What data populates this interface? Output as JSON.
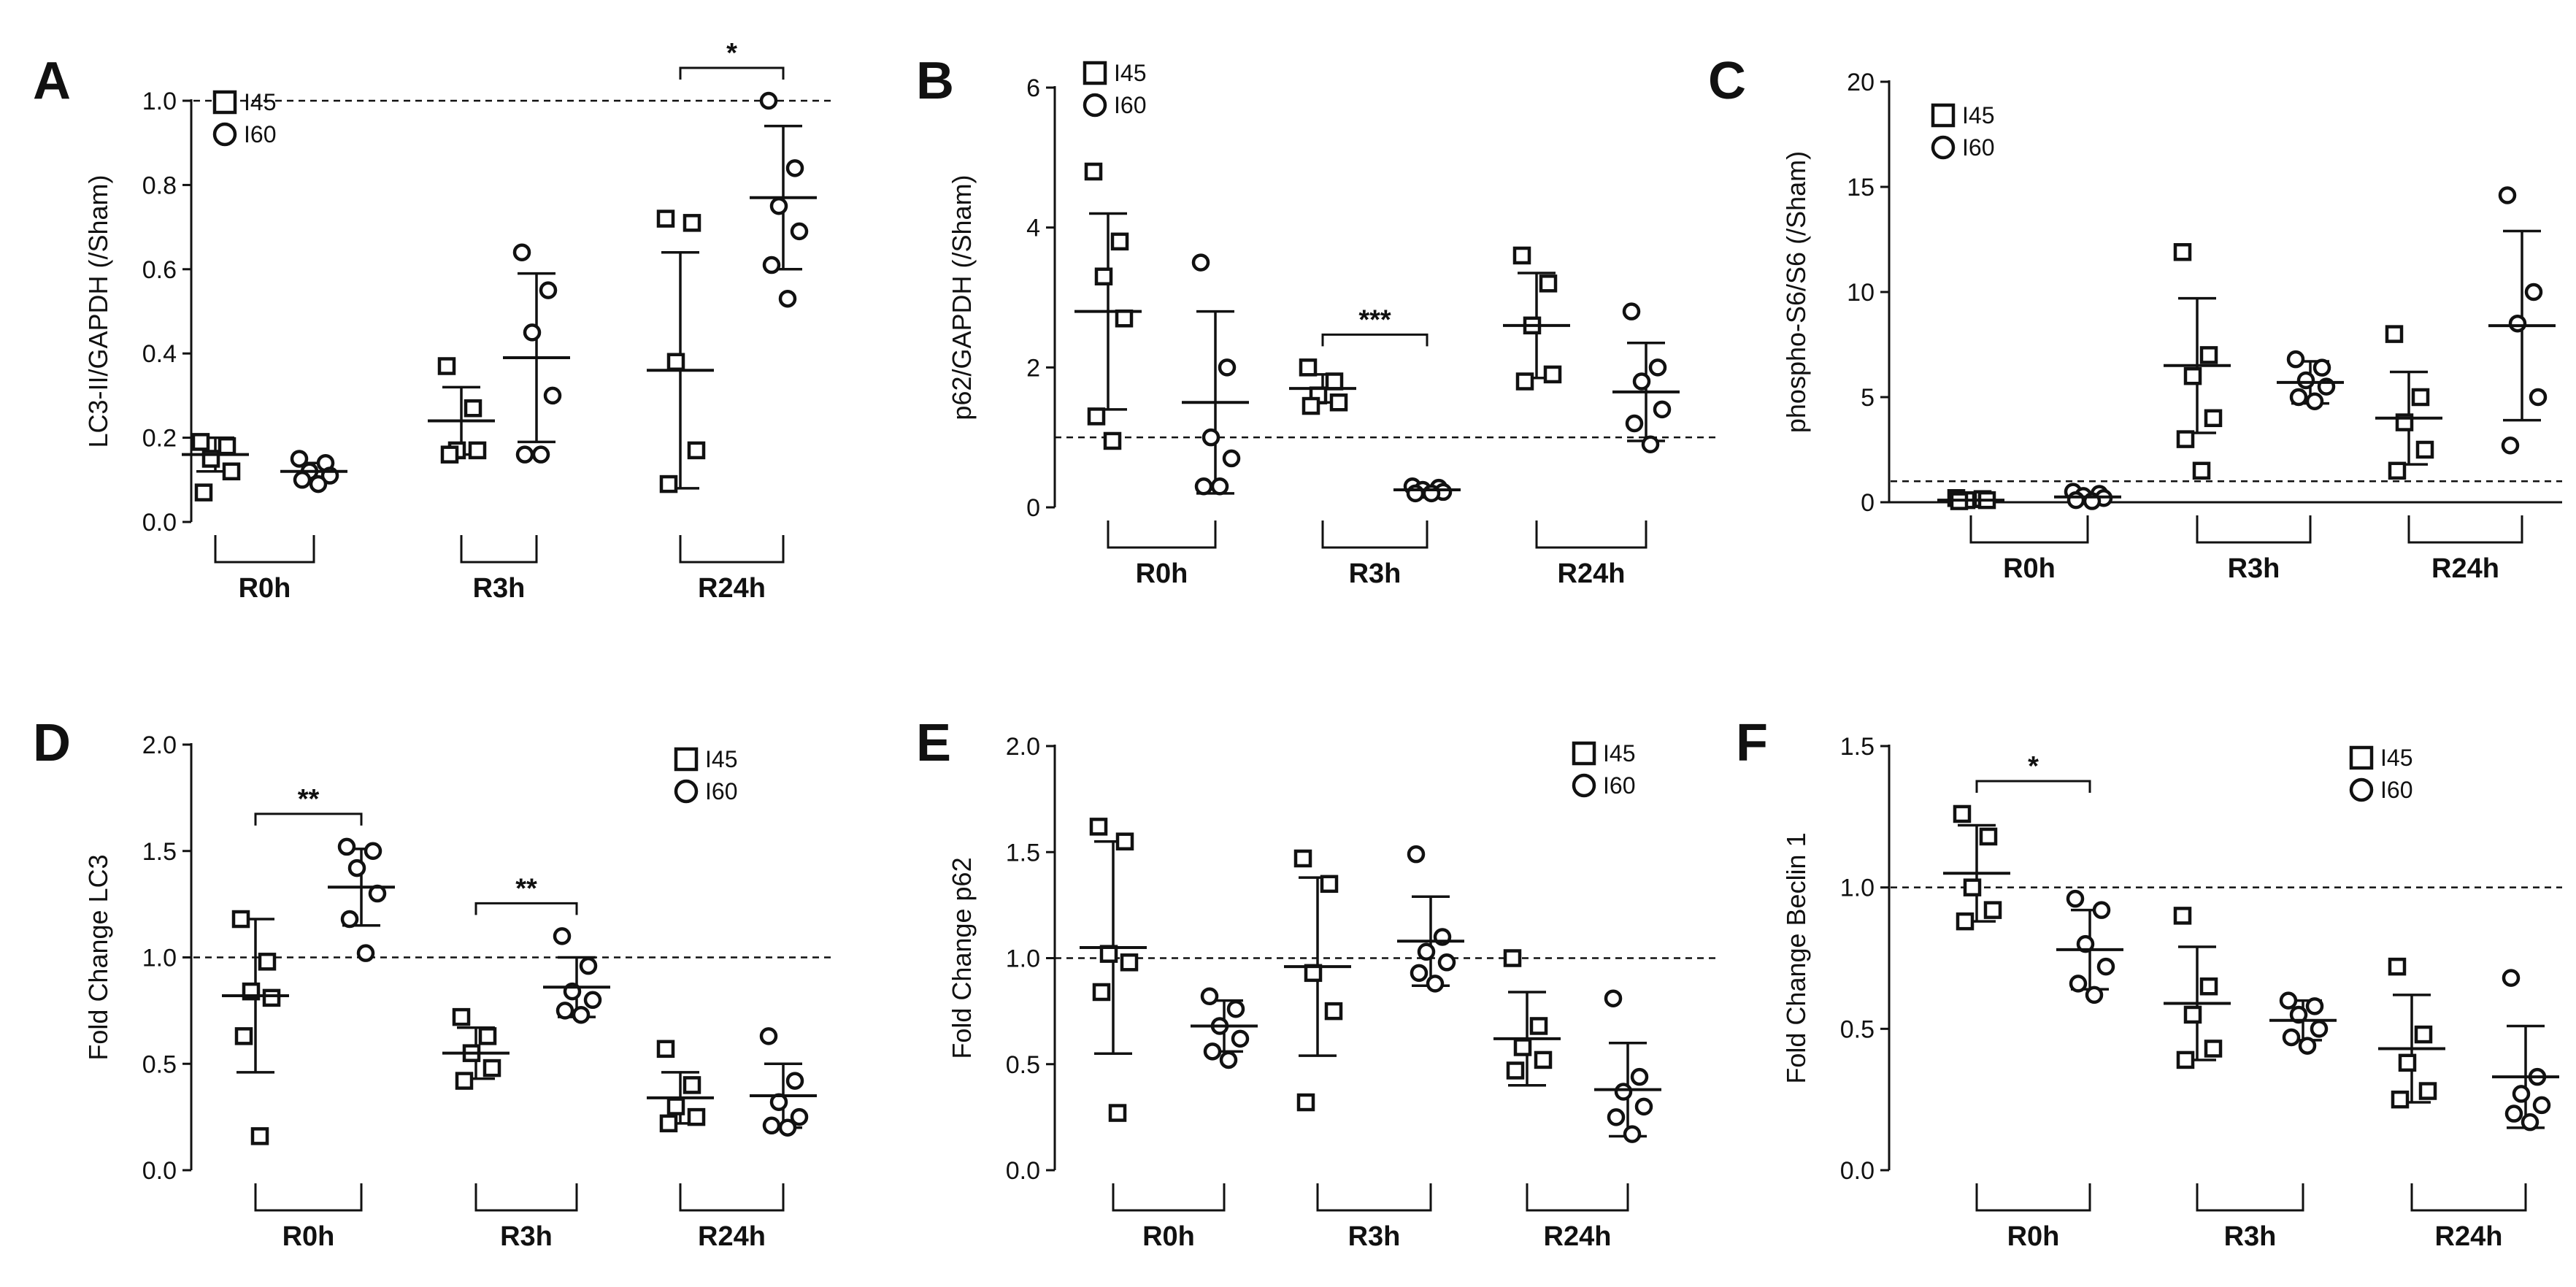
{
  "figure": {
    "group_labels": [
      "R0h",
      "R3h",
      "R24h"
    ],
    "series_names": [
      "I45",
      "I60"
    ],
    "colors": {
      "ink": "#111111",
      "background": "#ffffff"
    }
  },
  "chart_data": [
    {
      "panel": "A",
      "type": "scatter",
      "ylabel": "LC3-II/GAPDH (/Sham)",
      "ylim": [
        0,
        1.0
      ],
      "yticks": [
        0.0,
        0.2,
        0.4,
        0.6,
        0.8,
        1.0
      ],
      "tick_decimals": 1,
      "reference_line": 1.0,
      "legend_position": "top-left",
      "categories": [
        "R0h",
        "R3h",
        "R24h"
      ],
      "series": [
        {
          "name": "I45",
          "marker": "square",
          "means": [
            0.16,
            0.24,
            0.36
          ],
          "sd": [
            0.04,
            0.08,
            0.28
          ],
          "values": [
            [
              0.19,
              0.18,
              0.15,
              0.12,
              0.07
            ],
            [
              0.37,
              0.27,
              0.17,
              0.17,
              0.16
            ],
            [
              0.72,
              0.71,
              0.38,
              0.17,
              0.09
            ]
          ]
        },
        {
          "name": "I60",
          "marker": "circle",
          "means": [
            0.12,
            0.39,
            0.77
          ],
          "sd": [
            0.02,
            0.2,
            0.17
          ],
          "values": [
            [
              0.15,
              0.14,
              0.12,
              0.11,
              0.1,
              0.09
            ],
            [
              0.64,
              0.55,
              0.45,
              0.3,
              0.16,
              0.16
            ],
            [
              1.0,
              0.84,
              0.75,
              0.69,
              0.61,
              0.53
            ]
          ]
        }
      ],
      "significance": [
        {
          "category": "R24h",
          "label": "*"
        }
      ]
    },
    {
      "panel": "B",
      "type": "scatter",
      "ylabel": "p62/GAPDH (/Sham)",
      "ylim": [
        0,
        6
      ],
      "yticks": [
        0,
        2,
        4,
        6
      ],
      "tick_decimals": 0,
      "reference_line": 1.0,
      "legend_position": "top-left",
      "categories": [
        "R0h",
        "R3h",
        "R24h"
      ],
      "series": [
        {
          "name": "I45",
          "marker": "square",
          "means": [
            2.8,
            1.7,
            2.6
          ],
          "sd": [
            1.4,
            0.2,
            0.75
          ],
          "values": [
            [
              4.8,
              3.8,
              3.3,
              2.7,
              1.3,
              0.95
            ],
            [
              2.0,
              1.8,
              1.6,
              1.5,
              1.45
            ],
            [
              3.6,
              3.2,
              2.6,
              1.9,
              1.8
            ]
          ]
        },
        {
          "name": "I60",
          "marker": "circle",
          "means": [
            1.5,
            0.25,
            1.65
          ],
          "sd": [
            1.3,
            0.05,
            0.7
          ],
          "values": [
            [
              3.5,
              2.0,
              1.0,
              0.7,
              0.3,
              0.3
            ],
            [
              0.3,
              0.28,
              0.25,
              0.22,
              0.2,
              0.2
            ],
            [
              2.8,
              2.0,
              1.8,
              1.4,
              1.2,
              0.9
            ]
          ]
        }
      ],
      "significance": [
        {
          "category": "R3h",
          "label": "***"
        }
      ]
    },
    {
      "panel": "C",
      "type": "scatter",
      "ylabel": "phospho-S6/S6 (/Sham)",
      "ylim": [
        0,
        20
      ],
      "yticks": [
        0,
        5,
        10,
        15,
        20
      ],
      "tick_decimals": 0,
      "reference_line": 1.0,
      "legend_position": "top-left",
      "categories": [
        "R0h",
        "R3h",
        "R24h"
      ],
      "series": [
        {
          "name": "I45",
          "marker": "square",
          "means": [
            0.1,
            6.5,
            4.0
          ],
          "sd": [
            0.1,
            3.2,
            2.2
          ],
          "values": [
            [
              0.2,
              0.15,
              0.1,
              0.1,
              0.05
            ],
            [
              11.9,
              7.0,
              6.0,
              4.0,
              3.0,
              1.5
            ],
            [
              8.0,
              5.0,
              3.8,
              2.5,
              1.5
            ]
          ]
        },
        {
          "name": "I60",
          "marker": "circle",
          "means": [
            0.25,
            5.7,
            8.4
          ],
          "sd": [
            0.15,
            1.0,
            4.5
          ],
          "values": [
            [
              0.5,
              0.4,
              0.3,
              0.2,
              0.1,
              0.05
            ],
            [
              6.8,
              6.4,
              5.8,
              5.5,
              5.0,
              4.8
            ],
            [
              14.6,
              10.0,
              8.5,
              5.0,
              2.7
            ]
          ]
        }
      ],
      "significance": []
    },
    {
      "panel": "D",
      "type": "scatter",
      "ylabel": "Fold Change LC3",
      "ylim": [
        0,
        2.0
      ],
      "yticks": [
        0.0,
        0.5,
        1.0,
        1.5,
        2.0
      ],
      "tick_decimals": 1,
      "reference_line": 1.0,
      "legend_position": "top-right",
      "categories": [
        "R0h",
        "R3h",
        "R24h"
      ],
      "series": [
        {
          "name": "I45",
          "marker": "square",
          "means": [
            0.82,
            0.55,
            0.34
          ],
          "sd": [
            0.36,
            0.12,
            0.12
          ],
          "values": [
            [
              1.18,
              0.98,
              0.84,
              0.81,
              0.63,
              0.16
            ],
            [
              0.72,
              0.63,
              0.55,
              0.48,
              0.42
            ],
            [
              0.57,
              0.4,
              0.3,
              0.25,
              0.22
            ]
          ]
        },
        {
          "name": "I60",
          "marker": "circle",
          "means": [
            1.33,
            0.86,
            0.35
          ],
          "sd": [
            0.18,
            0.14,
            0.15
          ],
          "values": [
            [
              1.52,
              1.5,
              1.42,
              1.3,
              1.18,
              1.02
            ],
            [
              1.1,
              0.96,
              0.84,
              0.8,
              0.75,
              0.73
            ],
            [
              0.63,
              0.42,
              0.32,
              0.25,
              0.21,
              0.2
            ]
          ]
        }
      ],
      "significance": [
        {
          "category": "R0h",
          "label": "**"
        },
        {
          "category": "R3h",
          "label": "**"
        }
      ]
    },
    {
      "panel": "E",
      "type": "scatter",
      "ylabel": "Fold Change p62",
      "ylim": [
        0,
        2.0
      ],
      "yticks": [
        0.0,
        0.5,
        1.0,
        1.5,
        2.0
      ],
      "tick_decimals": 1,
      "reference_line": 1.0,
      "legend_position": "top-right",
      "categories": [
        "R0h",
        "R3h",
        "R24h"
      ],
      "series": [
        {
          "name": "I45",
          "marker": "square",
          "means": [
            1.05,
            0.96,
            0.62
          ],
          "sd": [
            0.5,
            0.42,
            0.22
          ],
          "values": [
            [
              1.62,
              1.55,
              1.02,
              0.98,
              0.84,
              0.27
            ],
            [
              1.47,
              1.35,
              0.93,
              0.75,
              0.32
            ],
            [
              1.0,
              0.68,
              0.58,
              0.52,
              0.47
            ]
          ]
        },
        {
          "name": "I60",
          "marker": "circle",
          "means": [
            0.68,
            1.08,
            0.38
          ],
          "sd": [
            0.12,
            0.21,
            0.22
          ],
          "values": [
            [
              0.82,
              0.76,
              0.68,
              0.62,
              0.56,
              0.52
            ],
            [
              1.49,
              1.1,
              1.03,
              0.98,
              0.93,
              0.88
            ],
            [
              0.81,
              0.44,
              0.37,
              0.3,
              0.25,
              0.17
            ]
          ]
        }
      ],
      "significance": []
    },
    {
      "panel": "F",
      "type": "scatter",
      "ylabel": "Fold Change Beclin 1",
      "ylim": [
        0,
        1.5
      ],
      "yticks": [
        0.0,
        0.5,
        1.0,
        1.5
      ],
      "tick_decimals": 1,
      "reference_line": 1.0,
      "legend_position": "top-right",
      "categories": [
        "R0h",
        "R3h",
        "R24h"
      ],
      "series": [
        {
          "name": "I45",
          "marker": "square",
          "means": [
            1.05,
            0.59,
            0.43
          ],
          "sd": [
            0.17,
            0.2,
            0.19
          ],
          "values": [
            [
              1.26,
              1.18,
              1.0,
              0.92,
              0.88
            ],
            [
              0.9,
              0.65,
              0.55,
              0.43,
              0.39
            ],
            [
              0.72,
              0.48,
              0.38,
              0.28,
              0.25
            ]
          ]
        },
        {
          "name": "I60",
          "marker": "circle",
          "means": [
            0.78,
            0.53,
            0.33
          ],
          "sd": [
            0.14,
            0.07,
            0.18
          ],
          "values": [
            [
              0.96,
              0.92,
              0.8,
              0.72,
              0.66,
              0.62
            ],
            [
              0.6,
              0.58,
              0.55,
              0.5,
              0.47,
              0.44
            ],
            [
              0.68,
              0.33,
              0.27,
              0.23,
              0.2,
              0.17
            ]
          ]
        }
      ],
      "significance": [
        {
          "category": "R0h",
          "label": "*"
        }
      ]
    }
  ]
}
